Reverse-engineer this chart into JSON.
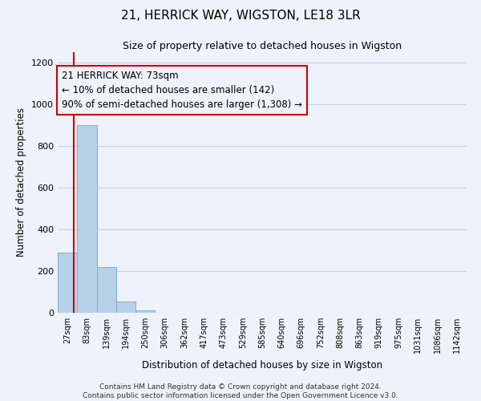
{
  "title": "21, HERRICK WAY, WIGSTON, LE18 3LR",
  "subtitle": "Size of property relative to detached houses in Wigston",
  "xlabel": "Distribution of detached houses by size in Wigston",
  "ylabel": "Number of detached properties",
  "bar_labels": [
    "27sqm",
    "83sqm",
    "139sqm",
    "194sqm",
    "250sqm",
    "306sqm",
    "362sqm",
    "417sqm",
    "473sqm",
    "529sqm",
    "585sqm",
    "640sqm",
    "696sqm",
    "752sqm",
    "808sqm",
    "863sqm",
    "919sqm",
    "975sqm",
    "1031sqm",
    "1086sqm",
    "1142sqm"
  ],
  "bar_values": [
    290,
    900,
    220,
    55,
    10,
    0,
    0,
    0,
    0,
    0,
    0,
    0,
    0,
    0,
    0,
    0,
    0,
    0,
    0,
    0,
    0
  ],
  "bar_color": "#b8d0e8",
  "bar_edge_color": "#7aafd4",
  "annotation_text": "21 HERRICK WAY: 73sqm\n← 10% of detached houses are smaller (142)\n90% of semi-detached houses are larger (1,308) →",
  "vline_color": "#cc0000",
  "annotation_box_color": "#cc0000",
  "ylim": [
    0,
    1250
  ],
  "yticks": [
    0,
    200,
    400,
    600,
    800,
    1000,
    1200
  ],
  "grid_color": "#c8d0e0",
  "background_color": "#eef2fa",
  "footer_line1": "Contains HM Land Registry data © Crown copyright and database right 2024.",
  "footer_line2": "Contains public sector information licensed under the Open Government Licence v3.0."
}
